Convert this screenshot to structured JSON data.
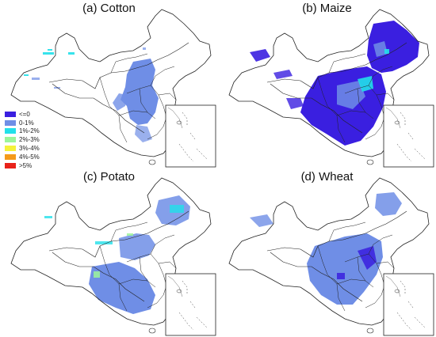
{
  "panels": [
    {
      "id": "cotton",
      "title": "(a) Cotton"
    },
    {
      "id": "maize",
      "title": "(b) Maize"
    },
    {
      "id": "potato",
      "title": "(c) Potato"
    },
    {
      "id": "wheat",
      "title": "(d) Wheat"
    }
  ],
  "legend": [
    {
      "label": "<=0",
      "color": "#3a1fe0"
    },
    {
      "label": "0-1%",
      "color": "#6f8ee6"
    },
    {
      "label": "1%-2%",
      "color": "#22e0ea"
    },
    {
      "label": "2%-3%",
      "color": "#9cf59a"
    },
    {
      "label": "3%-4%",
      "color": "#f5f23a"
    },
    {
      "label": "4%-5%",
      "color": "#f59a1a"
    },
    {
      "label": ">5%",
      "color": "#e8221a"
    }
  ]
}
